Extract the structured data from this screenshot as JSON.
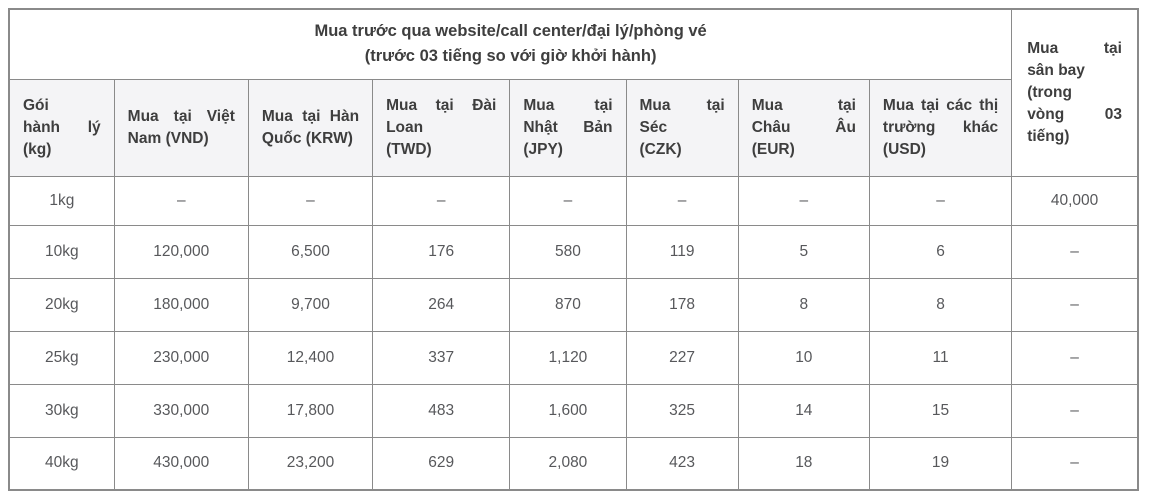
{
  "colors": {
    "header_background": "#f4f4f6",
    "grid_border": "#8a8a8a",
    "header_text": "#3e3e3e",
    "body_text": "#57585b"
  },
  "table": {
    "group_header": {
      "lines": [
        "Mua trước qua website/call center/đại lý/phòng vé",
        "(trước 03 tiếng so với giờ khởi hành)"
      ]
    },
    "airport_header": {
      "lines": [
        "Mua tại",
        "sân bay",
        "(trong",
        "vòng 03",
        "tiếng)"
      ],
      "stretch": [
        1,
        0,
        0,
        1,
        0
      ]
    },
    "columns": [
      {
        "id": "package",
        "lines": [
          "Gói",
          "hành lý",
          "(kg)"
        ],
        "stretch": [
          0,
          1,
          0
        ]
      },
      {
        "id": "vnd",
        "lines": [
          "Mua tại Việt",
          "Nam (VND)"
        ],
        "stretch": [
          1,
          0
        ]
      },
      {
        "id": "krw",
        "lines": [
          "Mua tại Hàn",
          "Quốc (KRW)"
        ],
        "stretch": [
          1,
          0
        ]
      },
      {
        "id": "twd",
        "lines": [
          "Mua tại Đài",
          "Loan",
          "(TWD)"
        ],
        "stretch": [
          1,
          0,
          0
        ]
      },
      {
        "id": "jpy",
        "lines": [
          "Mua",
          "tại",
          "Nhật",
          "Bản",
          "(JPY)"
        ],
        "stretch": [],
        "wrap2": [
          [
            "Mua tại"
          ],
          [
            "Nhật Bản"
          ],
          [
            "(JPY)"
          ]
        ]
      },
      {
        "id": "czk",
        "lines": [
          "Mua tại",
          "Séc",
          "(CZK)"
        ],
        "stretch": [
          1,
          0,
          0
        ]
      },
      {
        "id": "eur",
        "lines": [
          "Mua tại",
          "Châu Âu",
          "(EUR)"
        ],
        "stretch": [
          1,
          1,
          0
        ]
      },
      {
        "id": "usd",
        "lines": [
          "Mua tại các thị",
          "trường khác",
          "(USD)"
        ],
        "stretch": [
          1,
          1,
          0
        ]
      }
    ],
    "columns_jpy_fix": {
      "lines": [
        "Mua tại",
        "Nhật Bản",
        "(JPY)"
      ],
      "stretch": [
        1,
        1,
        0
      ]
    },
    "rows": [
      {
        "package": "1kg",
        "values": [
          "–",
          "–",
          "–",
          "–",
          "–",
          "–",
          "–"
        ],
        "airport": "40,000"
      },
      {
        "package": "10kg",
        "values": [
          "120,000",
          "6,500",
          "176",
          "580",
          "119",
          "5",
          "6"
        ],
        "airport": "–"
      },
      {
        "package": "20kg",
        "values": [
          "180,000",
          "9,700",
          "264",
          "870",
          "178",
          "8",
          "8"
        ],
        "airport": "–"
      },
      {
        "package": "25kg",
        "values": [
          "230,000",
          "12,400",
          "337",
          "1,120",
          "227",
          "10",
          "11"
        ],
        "airport": "–"
      },
      {
        "package": "30kg",
        "values": [
          "330,000",
          "17,800",
          "483",
          "1,600",
          "325",
          "14",
          "15"
        ],
        "airport": "–"
      },
      {
        "package": "40kg",
        "values": [
          "430,000",
          "23,200",
          "629",
          "2,080",
          "423",
          "18",
          "19"
        ],
        "airport": "–"
      }
    ]
  }
}
